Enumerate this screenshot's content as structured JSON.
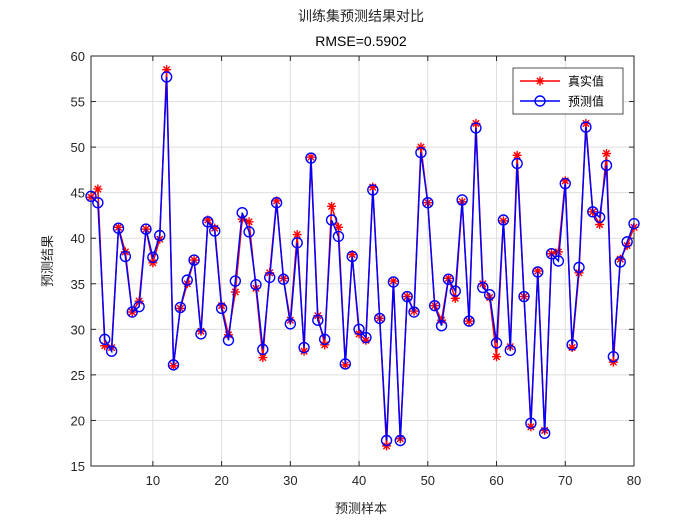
{
  "chart_data": {
    "type": "line",
    "title": "训练集预测结果对比",
    "subtitle": "RMSE=0.5902",
    "xlabel": "预测样本",
    "ylabel": "预测结果",
    "xlim": [
      1,
      80
    ],
    "ylim": [
      15,
      60
    ],
    "xticks": [
      10,
      20,
      30,
      40,
      50,
      60,
      70,
      80
    ],
    "yticks": [
      15,
      20,
      25,
      30,
      35,
      40,
      45,
      50,
      55,
      60
    ],
    "grid": true,
    "legend_position": "top-right",
    "series": [
      {
        "name": "真实值",
        "color": "#ff0000",
        "marker": "asterisk",
        "values": [
          44.5,
          45.4,
          28.2,
          28.0,
          41.2,
          38.5,
          31.9,
          33.1,
          41.0,
          37.3,
          39.9,
          58.5,
          26.0,
          32.3,
          35.0,
          37.6,
          29.8,
          42.0,
          41.1,
          32.6,
          29.4,
          34.1,
          42.1,
          41.8,
          34.5,
          26.9,
          36.2,
          44.1,
          35.6,
          31.0,
          40.4,
          27.6,
          48.9,
          31.5,
          28.3,
          43.5,
          41.2,
          26.1,
          38.2,
          29.5,
          28.8,
          45.6,
          31.2,
          17.2,
          35.3,
          18.0,
          33.6,
          32.0,
          50.0,
          43.9,
          32.6,
          31.0,
          35.6,
          33.4,
          44.0,
          30.9,
          52.6,
          35.0,
          33.5,
          27.0,
          41.9,
          28.1,
          49.1,
          33.6,
          19.3,
          36.4,
          18.9,
          38.3,
          38.5,
          46.3,
          28.0,
          36.2,
          52.6,
          42.9,
          41.5,
          49.3,
          26.4,
          37.7,
          39.2,
          41.2
        ]
      },
      {
        "name": "预测值",
        "color": "#0000ff",
        "marker": "circle",
        "values": [
          44.6,
          43.9,
          28.9,
          27.6,
          41.1,
          38.0,
          31.9,
          32.5,
          41.0,
          37.9,
          40.3,
          57.7,
          26.1,
          32.4,
          35.4,
          37.6,
          29.5,
          41.8,
          40.8,
          32.3,
          28.8,
          35.3,
          42.8,
          40.7,
          34.9,
          27.8,
          35.7,
          43.9,
          35.5,
          30.6,
          39.5,
          28.0,
          48.8,
          31.0,
          28.9,
          42.0,
          40.2,
          26.2,
          38.0,
          30.0,
          29.1,
          45.3,
          31.2,
          17.8,
          35.2,
          17.8,
          33.6,
          31.9,
          49.4,
          43.9,
          32.6,
          30.4,
          35.5,
          34.2,
          44.2,
          30.9,
          52.1,
          34.6,
          33.8,
          28.5,
          42.0,
          27.7,
          48.2,
          33.6,
          19.7,
          36.3,
          18.6,
          38.3,
          37.5,
          46.0,
          28.3,
          36.8,
          52.2,
          42.9,
          42.3,
          48.0,
          27.0,
          37.4,
          39.6,
          41.6
        ]
      }
    ]
  }
}
